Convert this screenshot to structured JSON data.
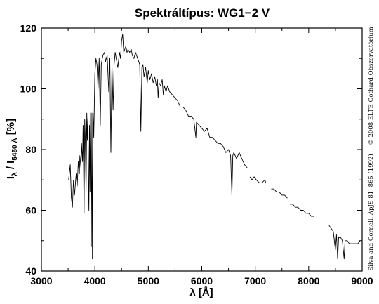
{
  "chart_data": {
    "type": "line",
    "title": "Spektráltípus: WG1−2 V",
    "xlabel": "λ [Å]",
    "ylabel": {
      "main": "I",
      "sub1": "λ",
      "sep": " / I",
      "sub2": "5450 Å",
      "unit": " [%]"
    },
    "xlim": [
      3000,
      9000
    ],
    "ylim": [
      40,
      120
    ],
    "xticks": [
      3000,
      4000,
      5000,
      6000,
      7000,
      8000,
      9000
    ],
    "yticks": [
      40,
      60,
      80,
      100,
      120
    ],
    "grid": false,
    "credit": "Silva and Cornell, ApJS 81, 865 (1992) − © 2008 ELTE Gothard Obszervatórium",
    "segments": [
      {
        "x": [
          3510,
          3540,
          3560,
          3580,
          3600,
          3620,
          3650,
          3670,
          3690,
          3710,
          3720,
          3740,
          3750,
          3770,
          3780,
          3798,
          3810,
          3820,
          3835,
          3850,
          3860,
          3870,
          3880,
          3889,
          3900,
          3910,
          3920,
          3933,
          3945,
          3955,
          3968,
          3980,
          4000,
          4020,
          4040,
          4060,
          4080,
          4101,
          4120,
          4150,
          4180,
          4200,
          4230,
          4260,
          4280,
          4300,
          4320,
          4340,
          4360,
          4380,
          4400,
          4430,
          4460,
          4480,
          4500,
          4520,
          4540,
          4560,
          4580,
          4600,
          4620,
          4650,
          4680,
          4700,
          4730,
          4760,
          4800,
          4840,
          4861,
          4880,
          4900,
          4920,
          4950,
          4980,
          5000,
          5030,
          5060,
          5090,
          5120,
          5150,
          5170,
          5183,
          5200,
          5230,
          5260,
          5280,
          5300,
          5330,
          5360,
          5400,
          5450,
          5500,
          5550,
          5600,
          5650,
          5700,
          5750,
          5800,
          5850,
          5890,
          5900,
          5950,
          6000,
          6050,
          6100,
          6150,
          6200,
          6250,
          6300,
          6350,
          6400,
          6450,
          6500,
          6540,
          6563,
          6580,
          6600,
          6650,
          6700,
          6750,
          6800,
          6850
        ],
        "y": [
          70,
          75,
          64,
          61,
          70,
          65,
          72,
          68,
          76,
          72,
          78,
          74,
          82,
          76,
          88,
          59,
          90,
          84,
          66,
          92,
          83,
          90,
          70,
          60,
          88,
          66,
          92,
          48,
          92,
          44,
          92,
          84,
          105,
          110,
          108,
          100,
          110,
          88,
          108,
          111,
          112,
          109,
          111,
          99,
          110,
          79,
          108,
          93,
          108,
          112,
          110,
          107,
          112,
          110,
          116,
          118,
          112,
          113,
          114,
          112,
          113,
          112,
          113,
          111,
          110,
          112,
          110,
          108,
          86,
          107,
          108,
          104,
          107,
          102,
          106,
          103,
          105,
          102,
          104,
          101,
          103,
          97,
          102,
          101,
          103,
          98,
          101,
          99,
          101,
          99,
          98,
          97,
          96,
          94,
          94,
          93,
          91,
          91,
          90,
          84,
          89,
          88,
          87,
          86,
          87,
          84,
          84,
          83,
          82,
          82,
          81,
          79,
          80,
          78,
          65,
          78,
          79,
          77,
          79,
          77,
          75,
          74
        ]
      },
      {
        "x": [
          6900,
          6940,
          6980,
          7020,
          7080,
          7120,
          7180,
          7200
        ],
        "y": [
          71,
          70,
          71,
          70,
          69,
          69,
          70,
          69
        ]
      },
      {
        "x": [
          7300,
          7350,
          7400,
          7450,
          7500,
          7550,
          7600
        ],
        "y": [
          67,
          67,
          66,
          66,
          65,
          65,
          64
        ]
      },
      {
        "x": [
          7650,
          7700,
          7750,
          7800,
          7850,
          7900,
          7950,
          8000,
          8050,
          8100
        ],
        "y": [
          62,
          62,
          61,
          61,
          60,
          60,
          59,
          59,
          58,
          58
        ]
      },
      {
        "x": [
          8380,
          8420,
          8460,
          8498,
          8520,
          8542,
          8560,
          8600,
          8630,
          8662,
          8680,
          8720,
          8760,
          8800,
          8840,
          8880,
          8920,
          8960
        ],
        "y": [
          55,
          54,
          53,
          47,
          52,
          44,
          51,
          51,
          50,
          44,
          50,
          50,
          49,
          49,
          49,
          49,
          49,
          50
        ]
      }
    ]
  }
}
